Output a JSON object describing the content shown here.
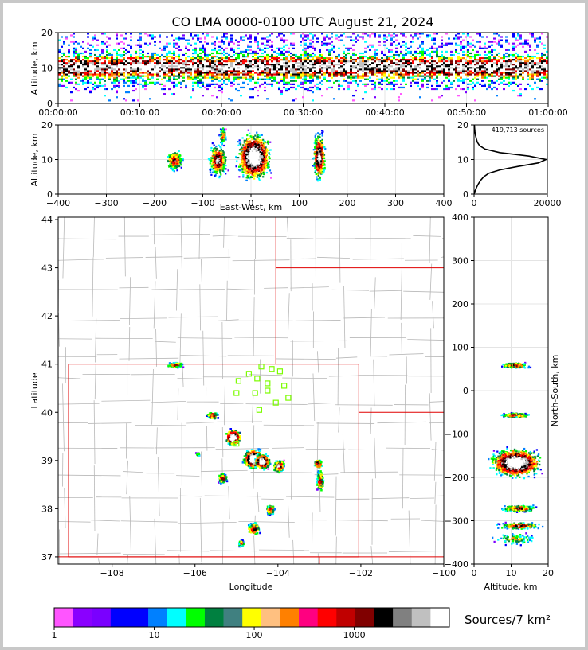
{
  "title": "CO LMA 0000-0100 UTC August 21, 2024",
  "colorbar_label": "Sources/7 km²",
  "chart_data": [
    {
      "panel": "time-altitude",
      "type": "heatmap",
      "ylabel": "Altitude, km",
      "xlabel": "",
      "x_ticks": [
        "00:00:00",
        "00:10:00",
        "00:20:00",
        "00:30:00",
        "00:40:00",
        "00:50:00",
        "01:00:00"
      ],
      "y_ticks": [
        "0",
        "10",
        "20"
      ],
      "ylim": [
        0,
        20
      ],
      "xlim": [
        "00:00:00",
        "01:00:00"
      ],
      "peak_altitude_km": 10
    },
    {
      "panel": "east-west-altitude",
      "type": "heatmap",
      "xlabel": "East-West, km",
      "ylabel": "Altitude, km",
      "x_ticks": [
        "−400",
        "−300",
        "−200",
        "−100",
        "0",
        "100",
        "200",
        "300",
        "400"
      ],
      "y_ticks": [
        "0",
        "10",
        "20"
      ],
      "xlim": [
        -400,
        400
      ],
      "ylim": [
        0,
        20
      ],
      "clusters_x_km": [
        -160,
        -70,
        -10,
        10,
        140
      ]
    },
    {
      "panel": "altitude-histogram",
      "type": "line",
      "annotation": "419,713 sources",
      "x_ticks": [
        "0",
        "20000"
      ],
      "y_ticks": [
        "0",
        "10",
        "20"
      ],
      "xlim": [
        0,
        20000
      ],
      "ylim": [
        0,
        20
      ],
      "altitude_km": [
        0,
        1,
        2,
        3,
        4,
        5,
        6,
        7,
        8,
        9,
        10,
        11,
        12,
        13,
        14,
        15,
        16,
        17,
        18,
        19,
        20
      ],
      "counts": [
        0,
        300,
        700,
        1200,
        1800,
        2600,
        4000,
        7000,
        12000,
        17500,
        19600,
        15000,
        7000,
        3000,
        1500,
        900,
        600,
        400,
        250,
        150,
        80
      ]
    },
    {
      "panel": "plan-view",
      "type": "heatmap",
      "xlabel": "Longitude",
      "ylabel": "Latitude",
      "x_ticks": [
        "−108",
        "−106",
        "−104",
        "−102",
        "−100"
      ],
      "y_ticks": [
        "37",
        "38",
        "39",
        "40",
        "41",
        "42",
        "43",
        "44"
      ],
      "xlim": [
        -109.3,
        -100
      ],
      "ylim": [
        36.85,
        44.05
      ],
      "stations_lonlat": [
        [
          -104.4,
          40.95
        ],
        [
          -104.15,
          40.9
        ],
        [
          -103.95,
          40.85
        ],
        [
          -104.7,
          40.8
        ],
        [
          -104.5,
          40.7
        ],
        [
          -104.95,
          40.65
        ],
        [
          -104.25,
          40.6
        ],
        [
          -103.85,
          40.55
        ],
        [
          -105.0,
          40.4
        ],
        [
          -104.55,
          40.4
        ],
        [
          -104.25,
          40.45
        ],
        [
          -103.75,
          40.3
        ],
        [
          -104.05,
          40.2
        ],
        [
          -104.45,
          40.05
        ],
        [
          -105.0,
          39.35
        ]
      ],
      "storms_lonlat": [
        [
          -106.5,
          41.0
        ],
        [
          -105.6,
          39.95
        ],
        [
          -105.1,
          39.5
        ],
        [
          -105.95,
          39.15
        ],
        [
          -105.35,
          38.65
        ],
        [
          -104.6,
          39.05
        ],
        [
          -104.4,
          39.0
        ],
        [
          -104.0,
          38.9
        ],
        [
          -103.05,
          38.95
        ],
        [
          -103.0,
          38.6
        ],
        [
          -104.2,
          38.0
        ],
        [
          -104.6,
          37.6
        ],
        [
          -104.9,
          37.3
        ]
      ]
    },
    {
      "panel": "altitude-north-south",
      "type": "heatmap",
      "xlabel": "Altitude, km",
      "ylabel": "North-South, km",
      "x_ticks": [
        "0",
        "10",
        "20"
      ],
      "y_ticks": [
        "400",
        "300",
        "200",
        "100",
        "0",
        "−100",
        "−200",
        "−300",
        "−400"
      ],
      "xlim": [
        0,
        20
      ],
      "ylim": [
        -400,
        400
      ],
      "clusters_y_km": [
        60,
        -55,
        -160,
        -270,
        -310
      ]
    },
    {
      "panel": "colorbar",
      "type": "table",
      "tick_labels": [
        "1",
        "10",
        "100",
        "1000"
      ],
      "colors": [
        "#ff55ff",
        "#8a00ff",
        "#7a00ff",
        "#0000ff",
        "#0000ff",
        "#0080ff",
        "#00ffff",
        "#00ff00",
        "#008040",
        "#408080",
        "#ffff00",
        "#ffc080",
        "#ff8000",
        "#ff0080",
        "#ff0000",
        "#c00000",
        "#800000",
        "#000000",
        "#808080",
        "#c0c0c0",
        "#ffffff"
      ]
    }
  ],
  "scatter_colors": [
    "#ff55ff",
    "#7a00ff",
    "#0000ff",
    "#0080ff",
    "#00ffff",
    "#00ff00",
    "#008040",
    "#ffff00",
    "#ff8000",
    "#ff0000",
    "#800000",
    "#000000",
    "#c0c0c0",
    "#ffffff"
  ]
}
